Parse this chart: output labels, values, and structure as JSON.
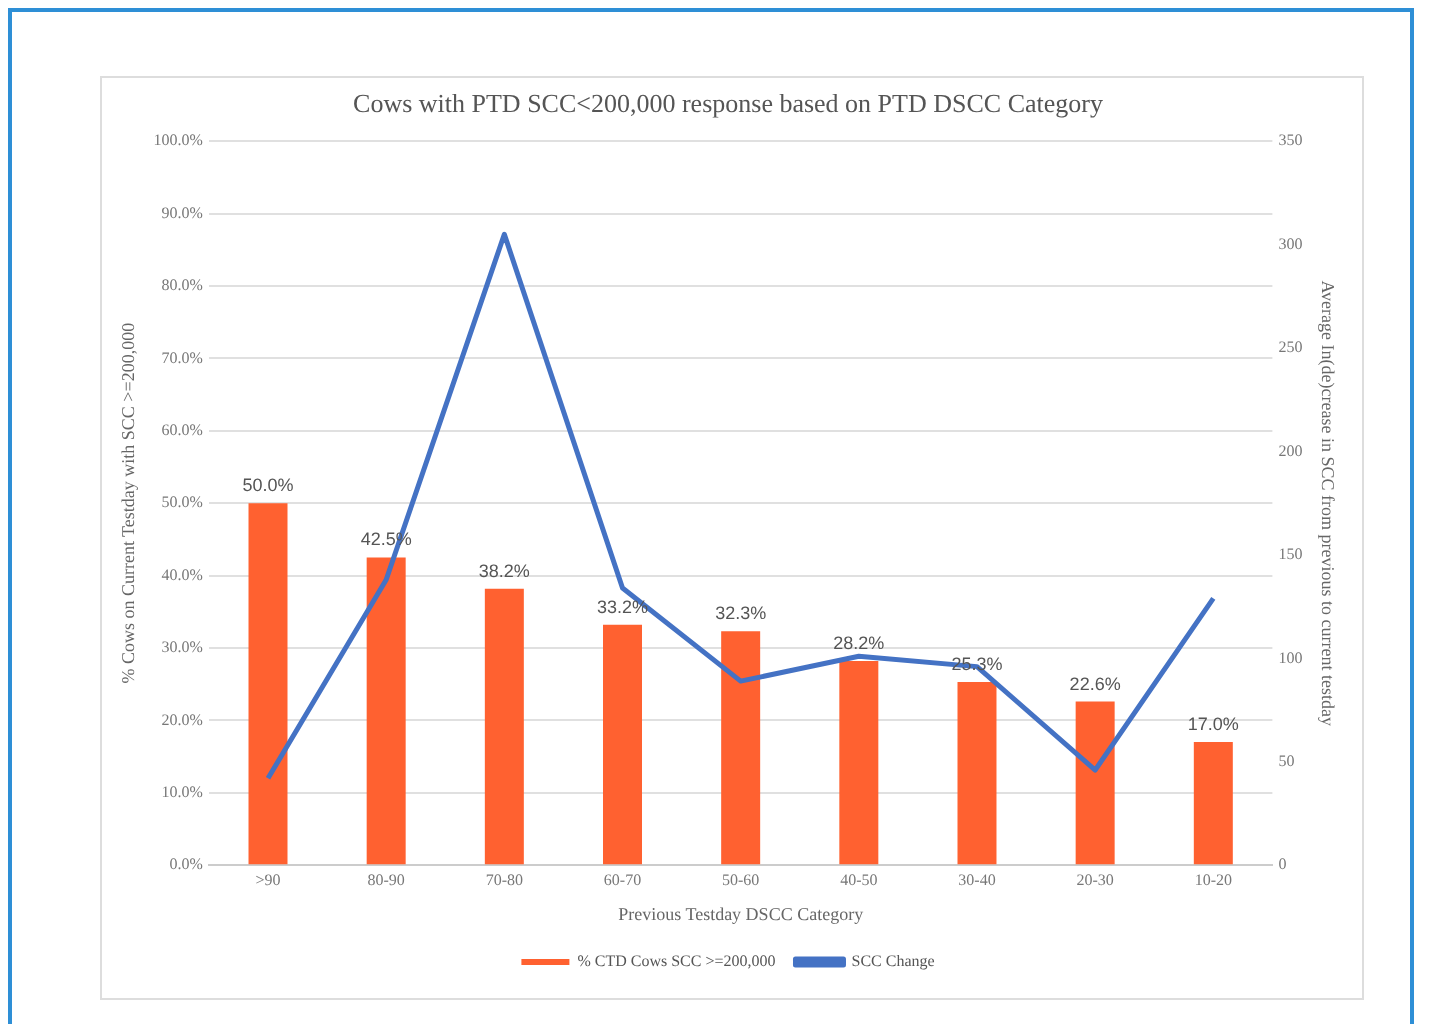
{
  "chart_data": {
    "type": "bar",
    "title": "Cows with PTD SCC<200,000 response based on PTD DSCC Category",
    "xlabel": "Previous Testday DSCC Category",
    "ylabel": "% Cows on Current Testday with SCC >=200,000",
    "y2label": "Average In(de)crease in SCC from previous to current testday",
    "categories": [
      ">90",
      "80-90",
      "70-80",
      "60-70",
      "50-60",
      "40-50",
      "30-40",
      "20-30",
      "10-20"
    ],
    "series": [
      {
        "name": "% CTD Cows SCC >=200,000",
        "color": "#ff6130",
        "values": [
          50.0,
          42.5,
          38.2,
          33.2,
          32.3,
          28.2,
          25.3,
          22.6,
          17.0
        ],
        "value_labels": [
          "50.0%",
          "42.5%",
          "38.2%",
          "33.2%",
          "32.3%",
          "28.2%",
          "25.3%",
          "22.6%",
          "17.0%"
        ]
      },
      {
        "name": "SCC Change",
        "type": "line",
        "axis": "y2",
        "color": "#4472c4",
        "values": [
          42,
          138,
          305,
          134,
          89,
          101,
          96,
          46,
          129
        ]
      }
    ],
    "ylim": [
      0,
      100
    ],
    "yticks": [
      {
        "value": 0,
        "label": "0.0%"
      },
      {
        "value": 10,
        "label": "10.0%"
      },
      {
        "value": 20,
        "label": "20.0%"
      },
      {
        "value": 30,
        "label": "30.0%"
      },
      {
        "value": 40,
        "label": "40.0%"
      },
      {
        "value": 50,
        "label": "50.0%"
      },
      {
        "value": 60,
        "label": "60.0%"
      },
      {
        "value": 70,
        "label": "70.0%"
      },
      {
        "value": 80,
        "label": "80.0%"
      },
      {
        "value": 90,
        "label": "90.0%"
      },
      {
        "value": 100,
        "label": "100.0%"
      }
    ],
    "y2lim": [
      0,
      350
    ],
    "y2ticks": [
      0,
      50,
      100,
      150,
      200,
      250,
      300,
      350
    ],
    "grid": "y",
    "legend": "bottom",
    "marker": "none"
  }
}
